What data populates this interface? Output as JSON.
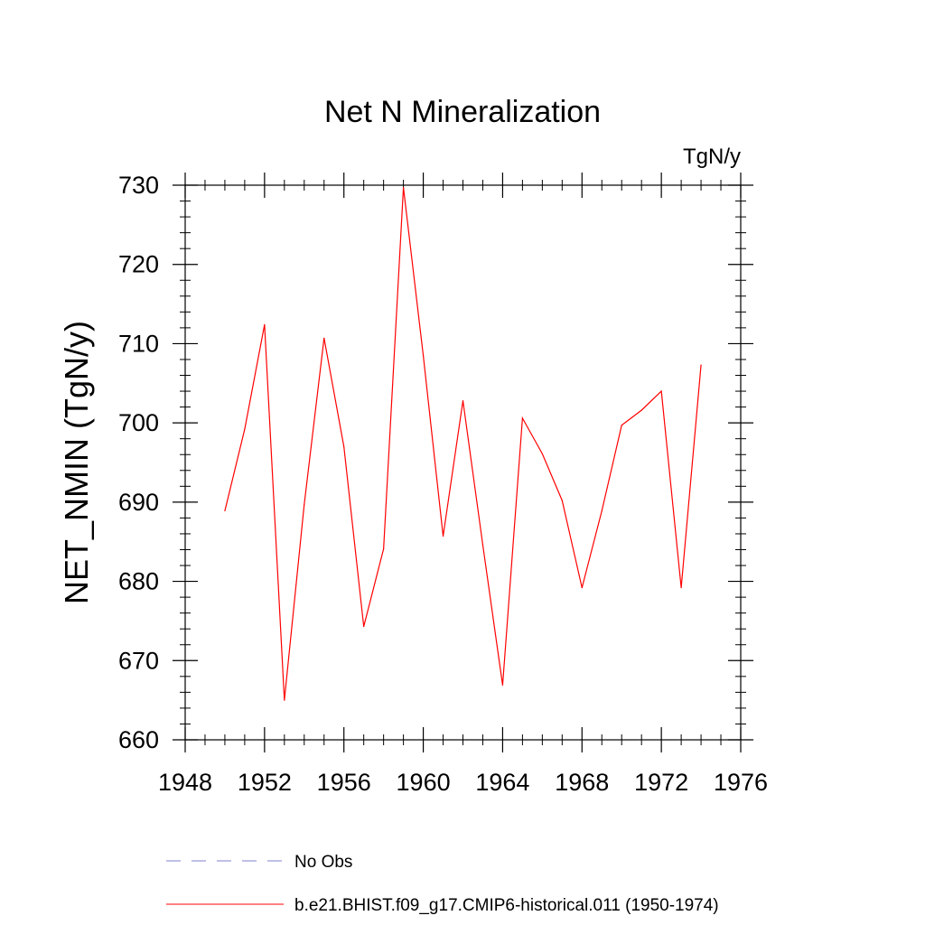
{
  "chart_data": {
    "type": "line",
    "title": "Net N Mineralization",
    "units": "TgN/y",
    "xlabel": "",
    "ylabel": "NET_NMIN  (TgN/y)",
    "xlim": [
      1948,
      1976
    ],
    "ylim": [
      660,
      730
    ],
    "xticks": [
      1948,
      1952,
      1956,
      1960,
      1964,
      1968,
      1972,
      1976
    ],
    "yticks": [
      660,
      670,
      680,
      690,
      700,
      710,
      720,
      730
    ],
    "x_minor_step": 1,
    "y_minor_step": 2,
    "grid": false,
    "legend_position": "bottom",
    "series": [
      {
        "name": "No Obs",
        "color": "#7f7fcc",
        "style": "dashed",
        "x": [],
        "values": []
      },
      {
        "name": "b.e21.BHIST.f09_g17.CMIP6-historical.011 (1950-1974)",
        "color": "#ff0000",
        "style": "solid",
        "x": [
          1950,
          1951,
          1952,
          1953,
          1954,
          1955,
          1956,
          1957,
          1958,
          1959,
          1960,
          1961,
          1962,
          1963,
          1964,
          1965,
          1966,
          1967,
          1968,
          1969,
          1970,
          1971,
          1972,
          1973,
          1974
        ],
        "values": [
          688.9,
          699.2,
          712.4,
          665.0,
          689.7,
          710.7,
          697.0,
          674.3,
          684.1,
          729.7,
          708.5,
          685.7,
          702.8,
          684.6,
          666.9,
          700.6,
          696.1,
          690.2,
          679.2,
          688.9,
          699.7,
          701.6,
          704.0,
          679.2,
          707.3
        ]
      }
    ]
  }
}
